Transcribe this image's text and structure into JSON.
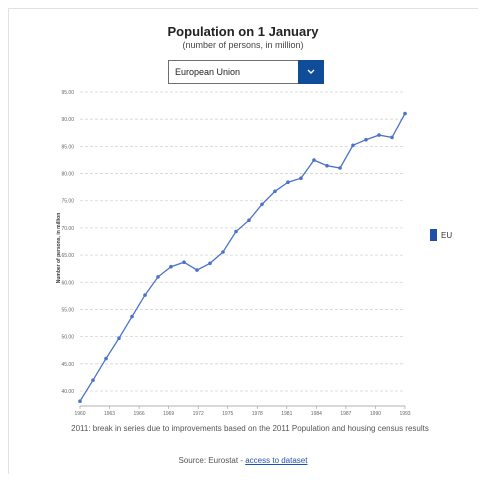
{
  "title": "Population on 1 January",
  "subtitle": "(number of persons, in million)",
  "selector": {
    "value": "European Union",
    "colors": {
      "button": "#0f4c9a"
    }
  },
  "legend": {
    "label": "EU",
    "color": "#1f4fa6"
  },
  "footnote": "2011: break in series due to improvements based on the 2011 Population and housing census results",
  "source": {
    "prefix": "Source: Eurostat - ",
    "link_label": "access to dataset"
  },
  "chart_data": {
    "type": "line",
    "title": "Population on 1 January",
    "subtitle": "(number of persons, in million)",
    "ylabel": "Number of persons, in million",
    "xlabel": "",
    "y_tick_labels": [
      "40.00",
      "45.00",
      "50.00",
      "55.00",
      "60.00",
      "65.00",
      "70.00",
      "75.00",
      "80.00",
      "85.00",
      "90.00",
      "95.00"
    ],
    "x_tick_labels": [
      "1960",
      "1963",
      "1966",
      "1969",
      "1972",
      "1975",
      "1978",
      "1981",
      "1984",
      "1987",
      "1990",
      "1993"
    ],
    "ylim": [
      40,
      95
    ],
    "grid": true,
    "legend_position": "right",
    "series": [
      {
        "name": "EU",
        "color": "#4a73c9",
        "x": [
          1960,
          1961,
          1962,
          1963,
          1964,
          1965,
          1966,
          1967,
          1968,
          1969,
          1970,
          1971,
          1972,
          1973,
          1974,
          1975,
          1976,
          1977,
          1978,
          1979,
          1980,
          1981,
          1982,
          1983,
          1984,
          1985
        ],
        "values": [
          40.5,
          44.2,
          48.0,
          51.6,
          55.4,
          59.2,
          62.4,
          64.2,
          65.0,
          63.6,
          64.8,
          66.8,
          70.4,
          72.4,
          75.2,
          77.5,
          79.1,
          79.8,
          83.0,
          82.0,
          81.6,
          85.6,
          86.6,
          87.4,
          87.0,
          91.2
        ]
      }
    ]
  }
}
